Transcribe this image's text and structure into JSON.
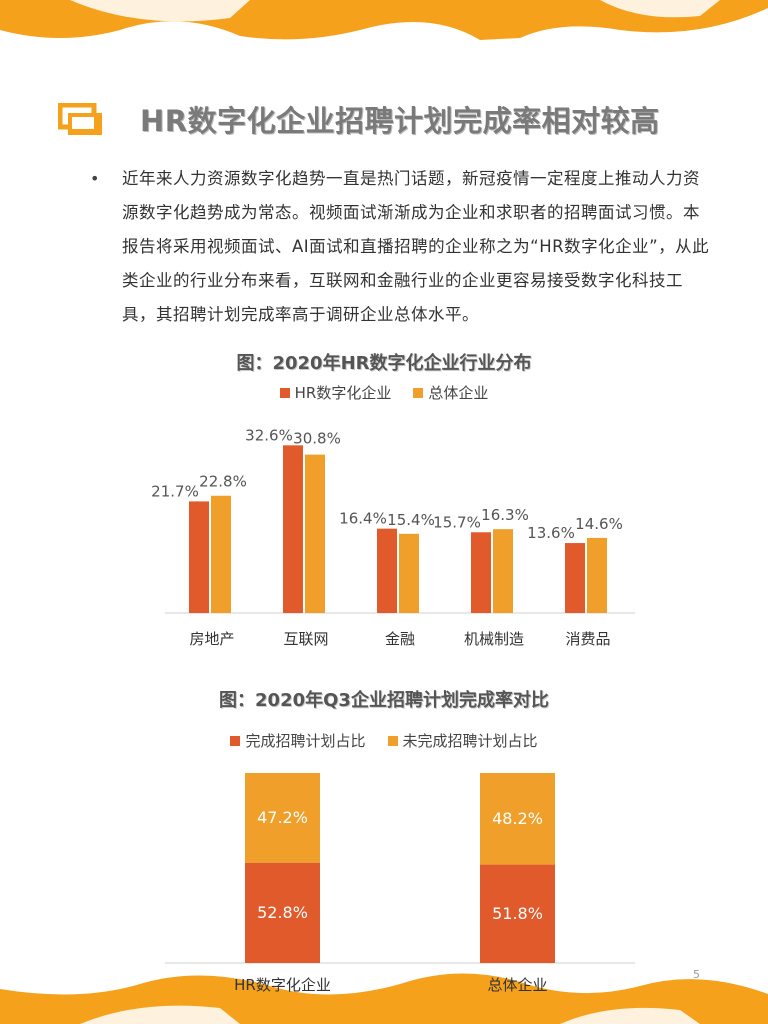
{
  "page": {
    "title": "HR数字化企业招聘计划完成率相对较高",
    "bullet": "•",
    "paragraph": "近年来人力资源数字化趋势一直是热门话题，新冠疫情一定程度上推动人力资源数字化趋势成为常态。视频面试渐渐成为企业和求职者的招聘面试习惯。本报告将采用视频面试、AI面试和直播招聘的企业称之为“HR数字化企业”，从此类企业的行业分布来看，互联网和金融行业的企业更容易接受数字化科技工具，其招聘计划完成率高于调研企业总体水平。",
    "page_number": "5"
  },
  "colors": {
    "red": "#e05a2c",
    "orange": "#f0a02a",
    "deco_orange": "#f5a11c"
  },
  "chart_data": [
    {
      "type": "bar",
      "title": "图：2020年HR数字化企业行业分布",
      "categories": [
        "房地产",
        "互联网",
        "金融",
        "机械制造",
        "消费品"
      ],
      "series": [
        {
          "name": "HR数字化企业",
          "values": [
            21.7,
            32.6,
            16.4,
            15.7,
            13.6
          ],
          "labels": [
            "21.7%",
            "32.6%",
            "16.4%",
            "15.7%",
            "13.6%"
          ]
        },
        {
          "name": "总体企业",
          "values": [
            22.8,
            30.8,
            15.4,
            16.3,
            14.6
          ],
          "labels": [
            "22.8%",
            "30.8%",
            "15.4%",
            "16.3%",
            "14.6%"
          ]
        }
      ],
      "ylim": [
        0,
        35
      ],
      "legend": "top-center",
      "grid": false
    },
    {
      "type": "bar",
      "stacked": true,
      "title": "图：2020年Q3企业招聘计划完成率对比",
      "categories": [
        "HR数字化企业",
        "总体企业"
      ],
      "series": [
        {
          "name": "完成招聘计划占比",
          "values": [
            52.8,
            51.8
          ],
          "labels": [
            "52.8%",
            "51.8%"
          ]
        },
        {
          "name": "未完成招聘计划占比",
          "values": [
            47.2,
            48.2
          ],
          "labels": [
            "47.2%",
            "48.2%"
          ]
        }
      ],
      "ylim": [
        0,
        100
      ],
      "legend": "top-center",
      "grid": false
    }
  ]
}
